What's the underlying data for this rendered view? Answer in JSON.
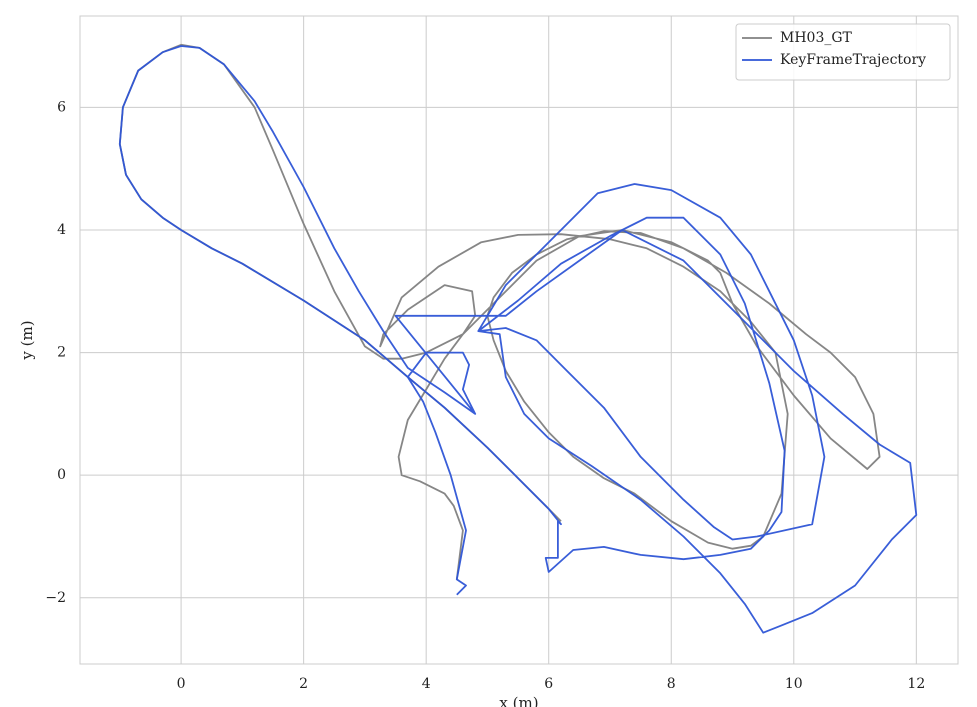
{
  "chart_data": {
    "type": "line",
    "xlabel": "x (m)",
    "ylabel": "y (m)",
    "xlim": [
      -1.65,
      12.68
    ],
    "ylim": [
      -3.08,
      7.49
    ],
    "xticks": [
      0,
      2,
      4,
      6,
      8,
      10,
      12
    ],
    "yticks": [
      {
        "value": -2,
        "label": "−2"
      },
      0,
      2,
      4,
      6
    ],
    "grid": true,
    "legend": "upper right",
    "series": [
      {
        "name": "MH03_GT",
        "color": "#808080",
        "x": [
          4.5,
          4.6,
          4.45,
          4.3,
          3.9,
          3.6,
          3.55,
          3.7,
          4.0,
          4.3,
          4.6,
          4.8,
          4.75,
          4.3,
          3.7,
          3.3,
          3.25,
          3.6,
          4.2,
          4.9,
          5.5,
          6.2,
          7.0,
          7.6,
          8.2,
          8.8,
          9.3,
          9.7,
          9.9,
          9.8,
          9.5,
          9.3,
          9.0,
          8.6,
          8.0,
          7.4,
          6.9,
          6.4,
          6.0,
          5.6,
          5.3,
          5.1,
          5.0,
          5.1,
          5.4,
          5.8,
          6.3,
          6.9,
          7.5,
          8.2,
          8.9,
          9.6,
          10.2,
          10.6,
          11.0,
          11.3,
          11.4,
          11.2,
          10.6,
          10.0,
          9.4,
          9.0,
          8.8,
          8.6,
          8.0,
          7.2,
          6.5,
          5.8,
          5.2,
          4.6,
          4.0,
          3.6,
          3.3,
          3.0,
          2.5,
          2.0,
          1.5,
          1.2,
          0.7,
          0.3,
          0,
          -0.3,
          -0.7,
          -0.95,
          -1.0,
          -0.9,
          -0.65,
          -0.3,
          0,
          0.5,
          1.0,
          2.0,
          3.0,
          3.7,
          4.3,
          5.0,
          5.5,
          6.0,
          6.2
        ],
        "values": [
          -1.7,
          -0.9,
          -0.5,
          -0.3,
          -0.1,
          0,
          0.3,
          0.9,
          1.4,
          1.9,
          2.3,
          2.6,
          3.0,
          3.1,
          2.7,
          2.3,
          2.1,
          2.9,
          3.4,
          3.8,
          3.92,
          3.93,
          3.85,
          3.7,
          3.4,
          3.0,
          2.5,
          2.0,
          1.0,
          -0.3,
          -1.0,
          -1.15,
          -1.2,
          -1.1,
          -0.75,
          -0.3,
          -0.05,
          0.3,
          0.7,
          1.2,
          1.7,
          2.2,
          2.6,
          2.9,
          3.3,
          3.6,
          3.85,
          3.98,
          3.95,
          3.7,
          3.3,
          2.8,
          2.3,
          2.0,
          1.6,
          1.0,
          0.3,
          0.1,
          0.6,
          1.3,
          2.1,
          2.8,
          3.3,
          3.5,
          3.8,
          4.0,
          3.9,
          3.5,
          2.9,
          2.3,
          2.0,
          1.9,
          1.9,
          2.1,
          3.0,
          4.1,
          5.3,
          6.0,
          6.7,
          6.97,
          7.02,
          6.9,
          6.6,
          6.0,
          5.4,
          4.9,
          4.5,
          4.2,
          4.0,
          3.7,
          3.45,
          2.85,
          2.2,
          1.6,
          1.1,
          0.45,
          -0.05,
          -0.55,
          -0.75
        ]
      },
      {
        "name": "KeyFrameTrajectory",
        "color": "#2e55d6",
        "x": [
          4.5,
          4.65,
          4.5,
          4.65,
          4.4,
          4.15,
          3.95,
          3.7,
          4.0,
          4.6,
          4.7,
          4.6,
          4.8,
          4.3,
          3.7,
          3.3,
          2.9,
          2.5,
          2.0,
          1.5,
          1.2,
          0.7,
          0.3,
          0,
          -0.3,
          -0.7,
          -0.95,
          -1.0,
          -0.9,
          -0.65,
          -0.3,
          0,
          0.5,
          1.0,
          2.0,
          3.0,
          3.7,
          4.3,
          5.0,
          5.5,
          6.0,
          6.2,
          6.15,
          6.15,
          5.95,
          6.0,
          6.4,
          6.9,
          7.5,
          8.2,
          8.8,
          9.3,
          9.6,
          9.8,
          9.85,
          9.6,
          9.2,
          8.8,
          8.2,
          7.6,
          7.0,
          6.2,
          5.5,
          4.85,
          5.3,
          5.8,
          6.3,
          6.9,
          7.5,
          8.2,
          8.7,
          9.0,
          9.4,
          10.3,
          10.5,
          10.3,
          10.0,
          9.6,
          9.3,
          8.8,
          8.0,
          7.4,
          6.8,
          6.2,
          5.8,
          5.3,
          4.85,
          5.2,
          5.3,
          5.6,
          6.0,
          6.7,
          7.5,
          8.2,
          8.8,
          9.2,
          9.5,
          9.8,
          10.3,
          11.0,
          11.6,
          12.0,
          11.9,
          11.4,
          10.8,
          10.0,
          9.1,
          8.2,
          7.2,
          6.5,
          5.8,
          5.3,
          3.5,
          4.8
        ],
        "values": [
          -1.95,
          -1.8,
          -1.7,
          -0.9,
          0.0,
          0.7,
          1.2,
          1.6,
          2.0,
          2.0,
          1.8,
          1.4,
          1.0,
          1.35,
          1.75,
          2.35,
          3.0,
          3.7,
          4.7,
          5.6,
          6.1,
          6.7,
          6.97,
          7.0,
          6.9,
          6.6,
          6.0,
          5.4,
          4.9,
          4.5,
          4.2,
          4.0,
          3.7,
          3.45,
          2.85,
          2.2,
          1.6,
          1.1,
          0.45,
          -0.05,
          -0.55,
          -0.8,
          -0.75,
          -1.35,
          -1.35,
          -1.58,
          -1.22,
          -1.17,
          -1.3,
          -1.37,
          -1.3,
          -1.2,
          -0.9,
          -0.6,
          0.4,
          1.5,
          2.8,
          3.6,
          4.2,
          4.2,
          3.9,
          3.45,
          2.85,
          2.35,
          2.4,
          2.2,
          1.7,
          1.1,
          0.3,
          -0.4,
          -0.85,
          -1.05,
          -1.0,
          -0.8,
          0.3,
          1.3,
          2.2,
          3.0,
          3.6,
          4.2,
          4.65,
          4.75,
          4.6,
          4.0,
          3.6,
          3.1,
          2.35,
          2.3,
          1.6,
          1.0,
          0.6,
          0.15,
          -0.4,
          -1.0,
          -1.6,
          -2.1,
          -2.57,
          -2.45,
          -2.25,
          -1.8,
          -1.05,
          -0.65,
          0.2,
          0.5,
          1.0,
          1.7,
          2.6,
          3.5,
          4.0,
          3.5,
          3.0,
          2.6,
          2.6,
          1.0
        ]
      }
    ]
  }
}
